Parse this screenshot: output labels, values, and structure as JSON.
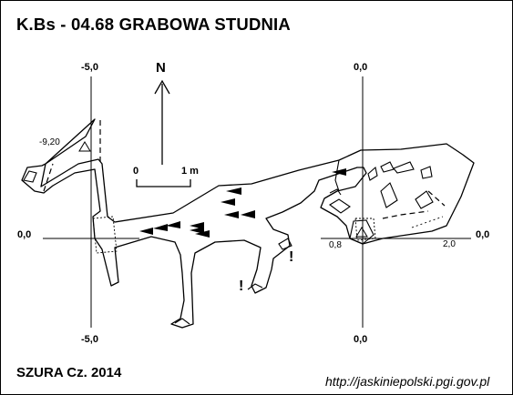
{
  "header": {
    "title": "K.Bs - 04.68  GRABOWA STUDNIA"
  },
  "footer": {
    "credit": "SZURA Cz. 2014",
    "url": "http://jaskiniepolski.pgi.gov.pl"
  },
  "map": {
    "north_label": "N",
    "scale_label_zero": "0",
    "scale_label_end": "1 m",
    "section_left": {
      "top": "-5,0",
      "bottom": "-5,0",
      "left": "0,0"
    },
    "section_right": {
      "top": "0,0",
      "bottom": "0,0",
      "right": "0,0"
    },
    "depths": {
      "upper_left": "-9,20",
      "near_right_sink": "0,8",
      "right": "2,0"
    },
    "hazard_marks": [
      "!",
      "!"
    ],
    "stroke_color": "#000000",
    "background_color": "#ffffff"
  }
}
